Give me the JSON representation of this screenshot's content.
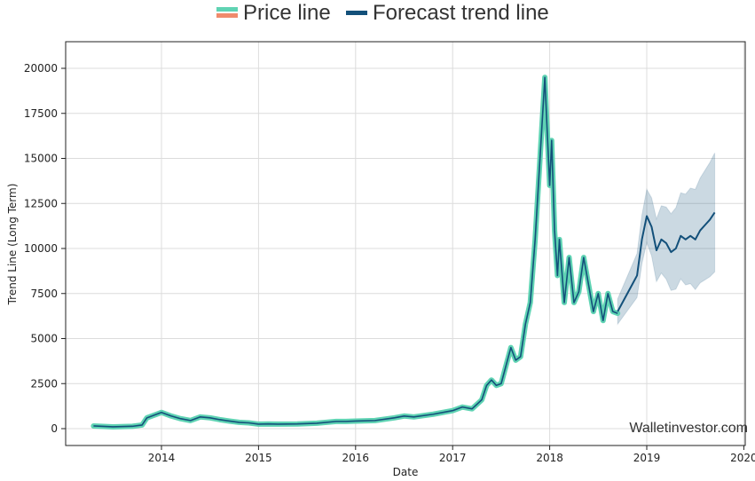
{
  "chart_data": {
    "type": "line",
    "title": "",
    "xlabel": "Date",
    "ylabel": "Trend Line (Long Term)",
    "xlim": [
      2013.2,
      2020.1
    ],
    "ylim": [
      -1000,
      21500
    ],
    "x_ticks": [
      2014,
      2015,
      2016,
      2017,
      2018,
      2019,
      2020
    ],
    "x_tick_labels": [
      "2014",
      "2015",
      "2016",
      "2017",
      "2018",
      "2019",
      "2020"
    ],
    "y_ticks": [
      0,
      2500,
      5000,
      7500,
      10000,
      12500,
      15000,
      17500,
      20000
    ],
    "y_tick_labels": [
      "0",
      "2500",
      "5000",
      "7500",
      "10000",
      "12500",
      "15000",
      "17500",
      "20000"
    ],
    "grid": true,
    "legend": {
      "position": "top-center",
      "entries": [
        {
          "label": "Price line",
          "colors": [
            "#5fd3b3",
            "#f08a6c"
          ]
        },
        {
          "label": "Forecast trend line",
          "colors": [
            "#13507a"
          ]
        }
      ]
    },
    "watermark": "Walletinvestor.com",
    "series": [
      {
        "name": "Price line",
        "color": "#5fd3b3",
        "x": [
          2013.3,
          2013.5,
          2013.7,
          2013.8,
          2013.85,
          2013.95,
          2014.0,
          2014.1,
          2014.2,
          2014.3,
          2014.4,
          2014.5,
          2014.6,
          2014.7,
          2014.8,
          2014.9,
          2015.0,
          2015.1,
          2015.2,
          2015.4,
          2015.6,
          2015.8,
          2015.9,
          2016.0,
          2016.2,
          2016.4,
          2016.5,
          2016.6,
          2016.8,
          2016.95,
          2017.0,
          2017.1,
          2017.2,
          2017.3,
          2017.35,
          2017.4,
          2017.45,
          2017.5,
          2017.55,
          2017.6,
          2017.65,
          2017.7,
          2017.75,
          2017.8,
          2017.85,
          2017.9,
          2017.95,
          2017.97,
          2018.0,
          2018.02,
          2018.05,
          2018.08,
          2018.1,
          2018.15,
          2018.2,
          2018.25,
          2018.3,
          2018.35,
          2018.4,
          2018.45,
          2018.5,
          2018.55,
          2018.6,
          2018.65,
          2018.7
        ],
        "values": [
          150,
          100,
          130,
          200,
          600,
          800,
          900,
          700,
          550,
          450,
          650,
          600,
          500,
          420,
          350,
          320,
          250,
          260,
          250,
          260,
          300,
          400,
          400,
          420,
          450,
          600,
          700,
          650,
          800,
          950,
          1000,
          1200,
          1100,
          1600,
          2400,
          2700,
          2400,
          2500,
          3500,
          4500,
          3800,
          4000,
          5800,
          7000,
          10500,
          15000,
          19500,
          17000,
          13500,
          16000,
          11000,
          8500,
          10500,
          7000,
          9500,
          7000,
          7600,
          9500,
          8000,
          6500,
          7500,
          6000,
          7500,
          6500,
          6400
        ]
      },
      {
        "name": "Forecast trend line",
        "color": "#13507a",
        "x": [
          2018.7,
          2018.75,
          2018.8,
          2018.85,
          2018.9,
          2018.95,
          2019.0,
          2019.05,
          2019.1,
          2019.15,
          2019.2,
          2019.25,
          2019.3,
          2019.35,
          2019.4,
          2019.45,
          2019.5,
          2019.55,
          2019.6,
          2019.65,
          2019.7
        ],
        "values": [
          6500,
          7000,
          7500,
          8000,
          8500,
          10500,
          11800,
          11200,
          9900,
          10500,
          10300,
          9800,
          10000,
          10700,
          10500,
          10700,
          10500,
          11000,
          11300,
          11600,
          12000
        ]
      }
    ]
  }
}
